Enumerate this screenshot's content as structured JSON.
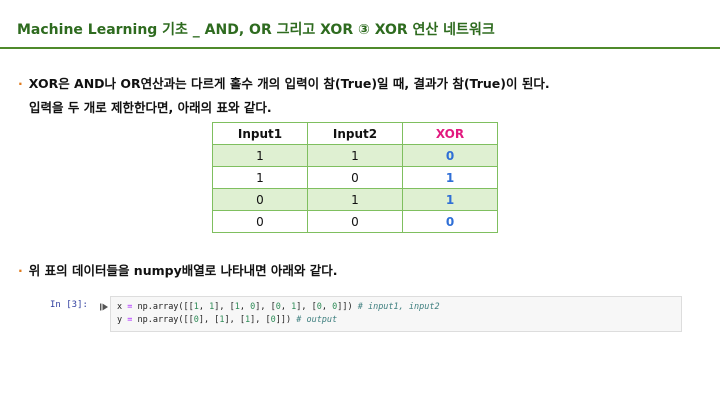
{
  "title": "Machine Learning 기초 _ AND, OR 그리고 XOR ③ XOR 연산 네트워크",
  "colors": {
    "title": "#2e6b1f",
    "rule": "#4f8a2b",
    "bullet": "#e07b1e",
    "xor_header": "#e2197f",
    "output": "#2f6fd6",
    "row_shade": "#dff0d2"
  },
  "bullet_icon": "·",
  "paragraph1": {
    "line1": "XOR은 AND나 OR연산과는 다르게 홀수 개의 입력이 참(True)일 때, 결과가 참(True)이 된다.",
    "line2": "입력을 두 개로 제한한다면, 아래의 표와 같다."
  },
  "table": {
    "headers": [
      "Input1",
      "Input2",
      "XOR"
    ],
    "rows": [
      [
        "1",
        "1",
        "0"
      ],
      [
        "1",
        "0",
        "1"
      ],
      [
        "0",
        "1",
        "1"
      ],
      [
        "0",
        "0",
        "0"
      ]
    ]
  },
  "paragraph2": "위 표의 데이터들을 numpy배열로 나타내면 아래와 같다.",
  "code_cell": {
    "prompt": "In [3]:",
    "run_icon": "run-cell-icon",
    "line1": {
      "var": "x",
      "eq": " = ",
      "call": "np.array([[",
      "parts": [
        "1",
        ", ",
        "1",
        "], [",
        "1",
        ", ",
        "0",
        "], [",
        "0",
        ", ",
        "1",
        "], [",
        "0",
        ", ",
        "0",
        "]]) "
      ],
      "comment": "# input1, input2"
    },
    "line2": {
      "var": "y",
      "eq": " = ",
      "call": "np.array([[",
      "parts": [
        "0",
        "], [",
        "1",
        "], [",
        "1",
        "], [",
        "0",
        "]]) "
      ],
      "comment": "# output"
    }
  }
}
